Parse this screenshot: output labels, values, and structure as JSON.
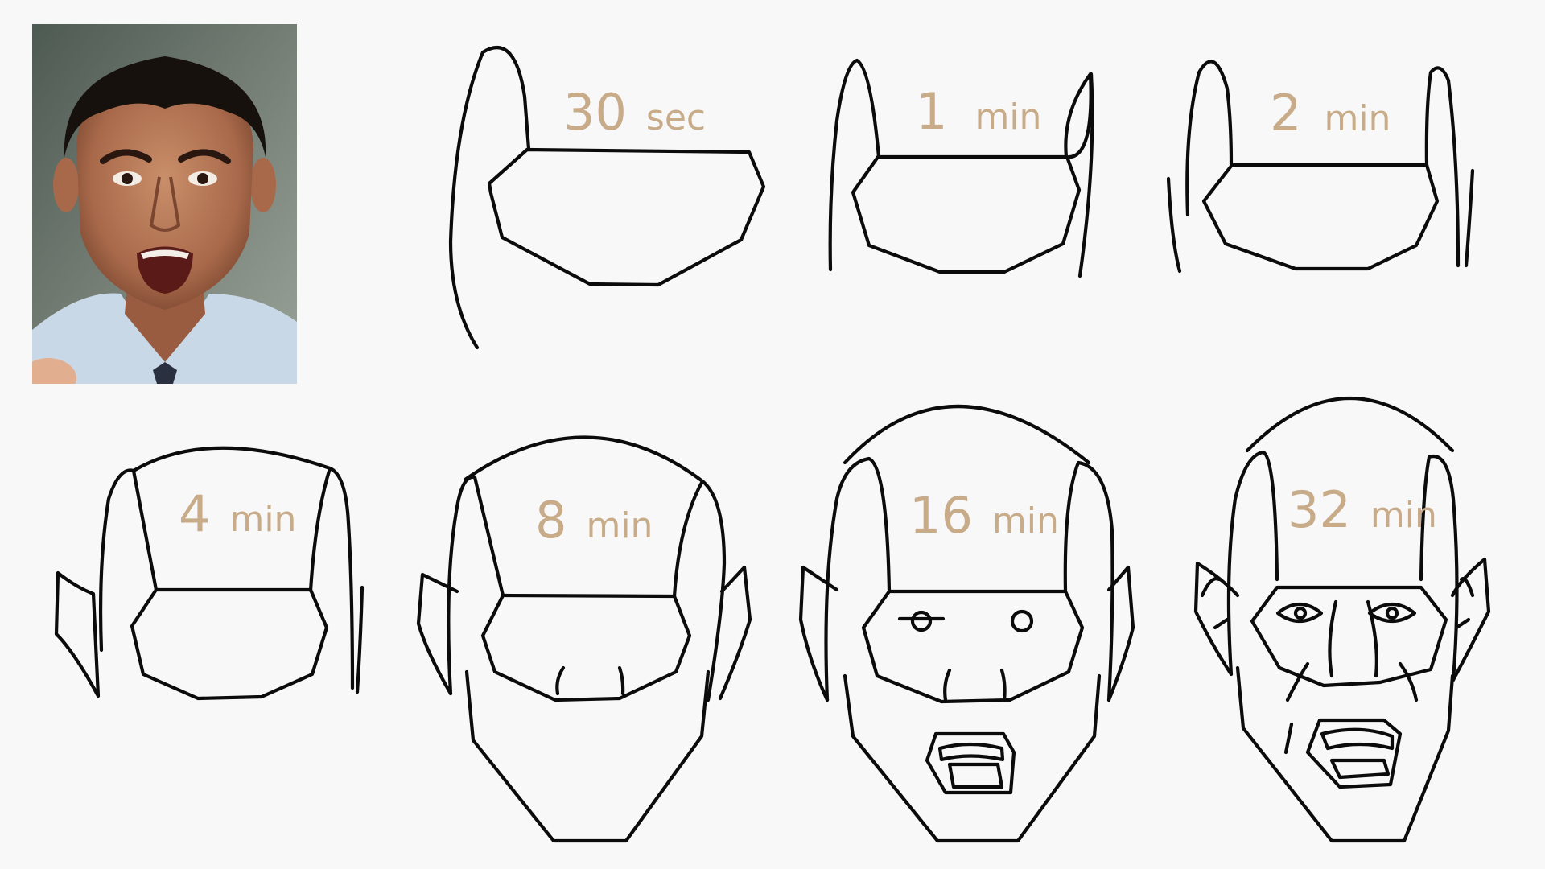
{
  "panels": [
    {
      "label_number": "30",
      "label_unit": "sec"
    },
    {
      "label_number": "1",
      "label_unit": "min"
    },
    {
      "label_number": "2",
      "label_unit": "min"
    },
    {
      "label_number": "4",
      "label_unit": "min"
    },
    {
      "label_number": "8",
      "label_unit": "min"
    },
    {
      "label_number": "16",
      "label_unit": "min"
    },
    {
      "label_number": "32",
      "label_unit": "min"
    }
  ],
  "colors": {
    "background": "#f8f8f8",
    "stroke": "#0b0b0b",
    "label": "#c8ab88"
  },
  "reference_photo": {
    "icon": "portrait-photo"
  }
}
